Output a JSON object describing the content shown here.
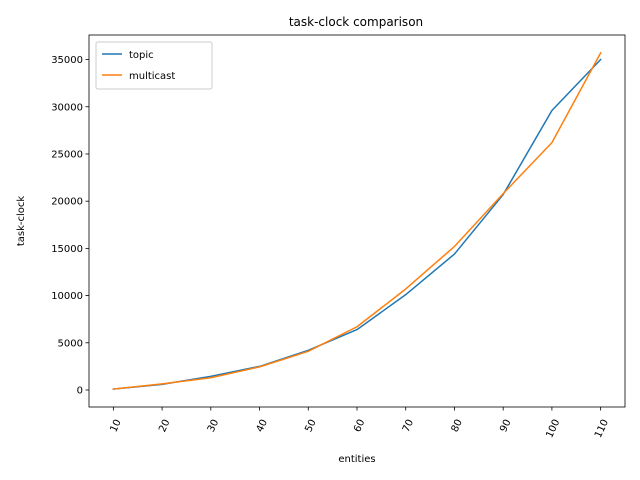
{
  "chart_data": {
    "type": "line",
    "title": "task-clock comparison",
    "xlabel": "entities",
    "ylabel": "task-clock",
    "x": [
      10,
      20,
      30,
      40,
      50,
      60,
      70,
      80,
      90,
      100,
      110
    ],
    "x_tick_labels": [
      "10",
      "20",
      "30",
      "40",
      "50",
      "60",
      "70",
      "80",
      "90",
      "100",
      "110"
    ],
    "y_ticks": [
      0,
      5000,
      10000,
      15000,
      20000,
      25000,
      30000,
      35000
    ],
    "y_tick_labels": [
      "0",
      "5000",
      "10000",
      "15000",
      "20000",
      "25000",
      "30000",
      "35000"
    ],
    "xlim": [
      5,
      115
    ],
    "ylim": [
      -1800,
      37600
    ],
    "grid": false,
    "legend_position": "top-left",
    "series": [
      {
        "name": "topic",
        "color": "#1f77b4",
        "values": [
          100,
          600,
          1450,
          2500,
          4200,
          6400,
          10100,
          14400,
          20700,
          29600,
          35000
        ]
      },
      {
        "name": "multicast",
        "color": "#ff7f0e",
        "values": [
          100,
          650,
          1300,
          2450,
          4100,
          6700,
          10700,
          15200,
          20800,
          26200,
          35700
        ]
      }
    ]
  }
}
